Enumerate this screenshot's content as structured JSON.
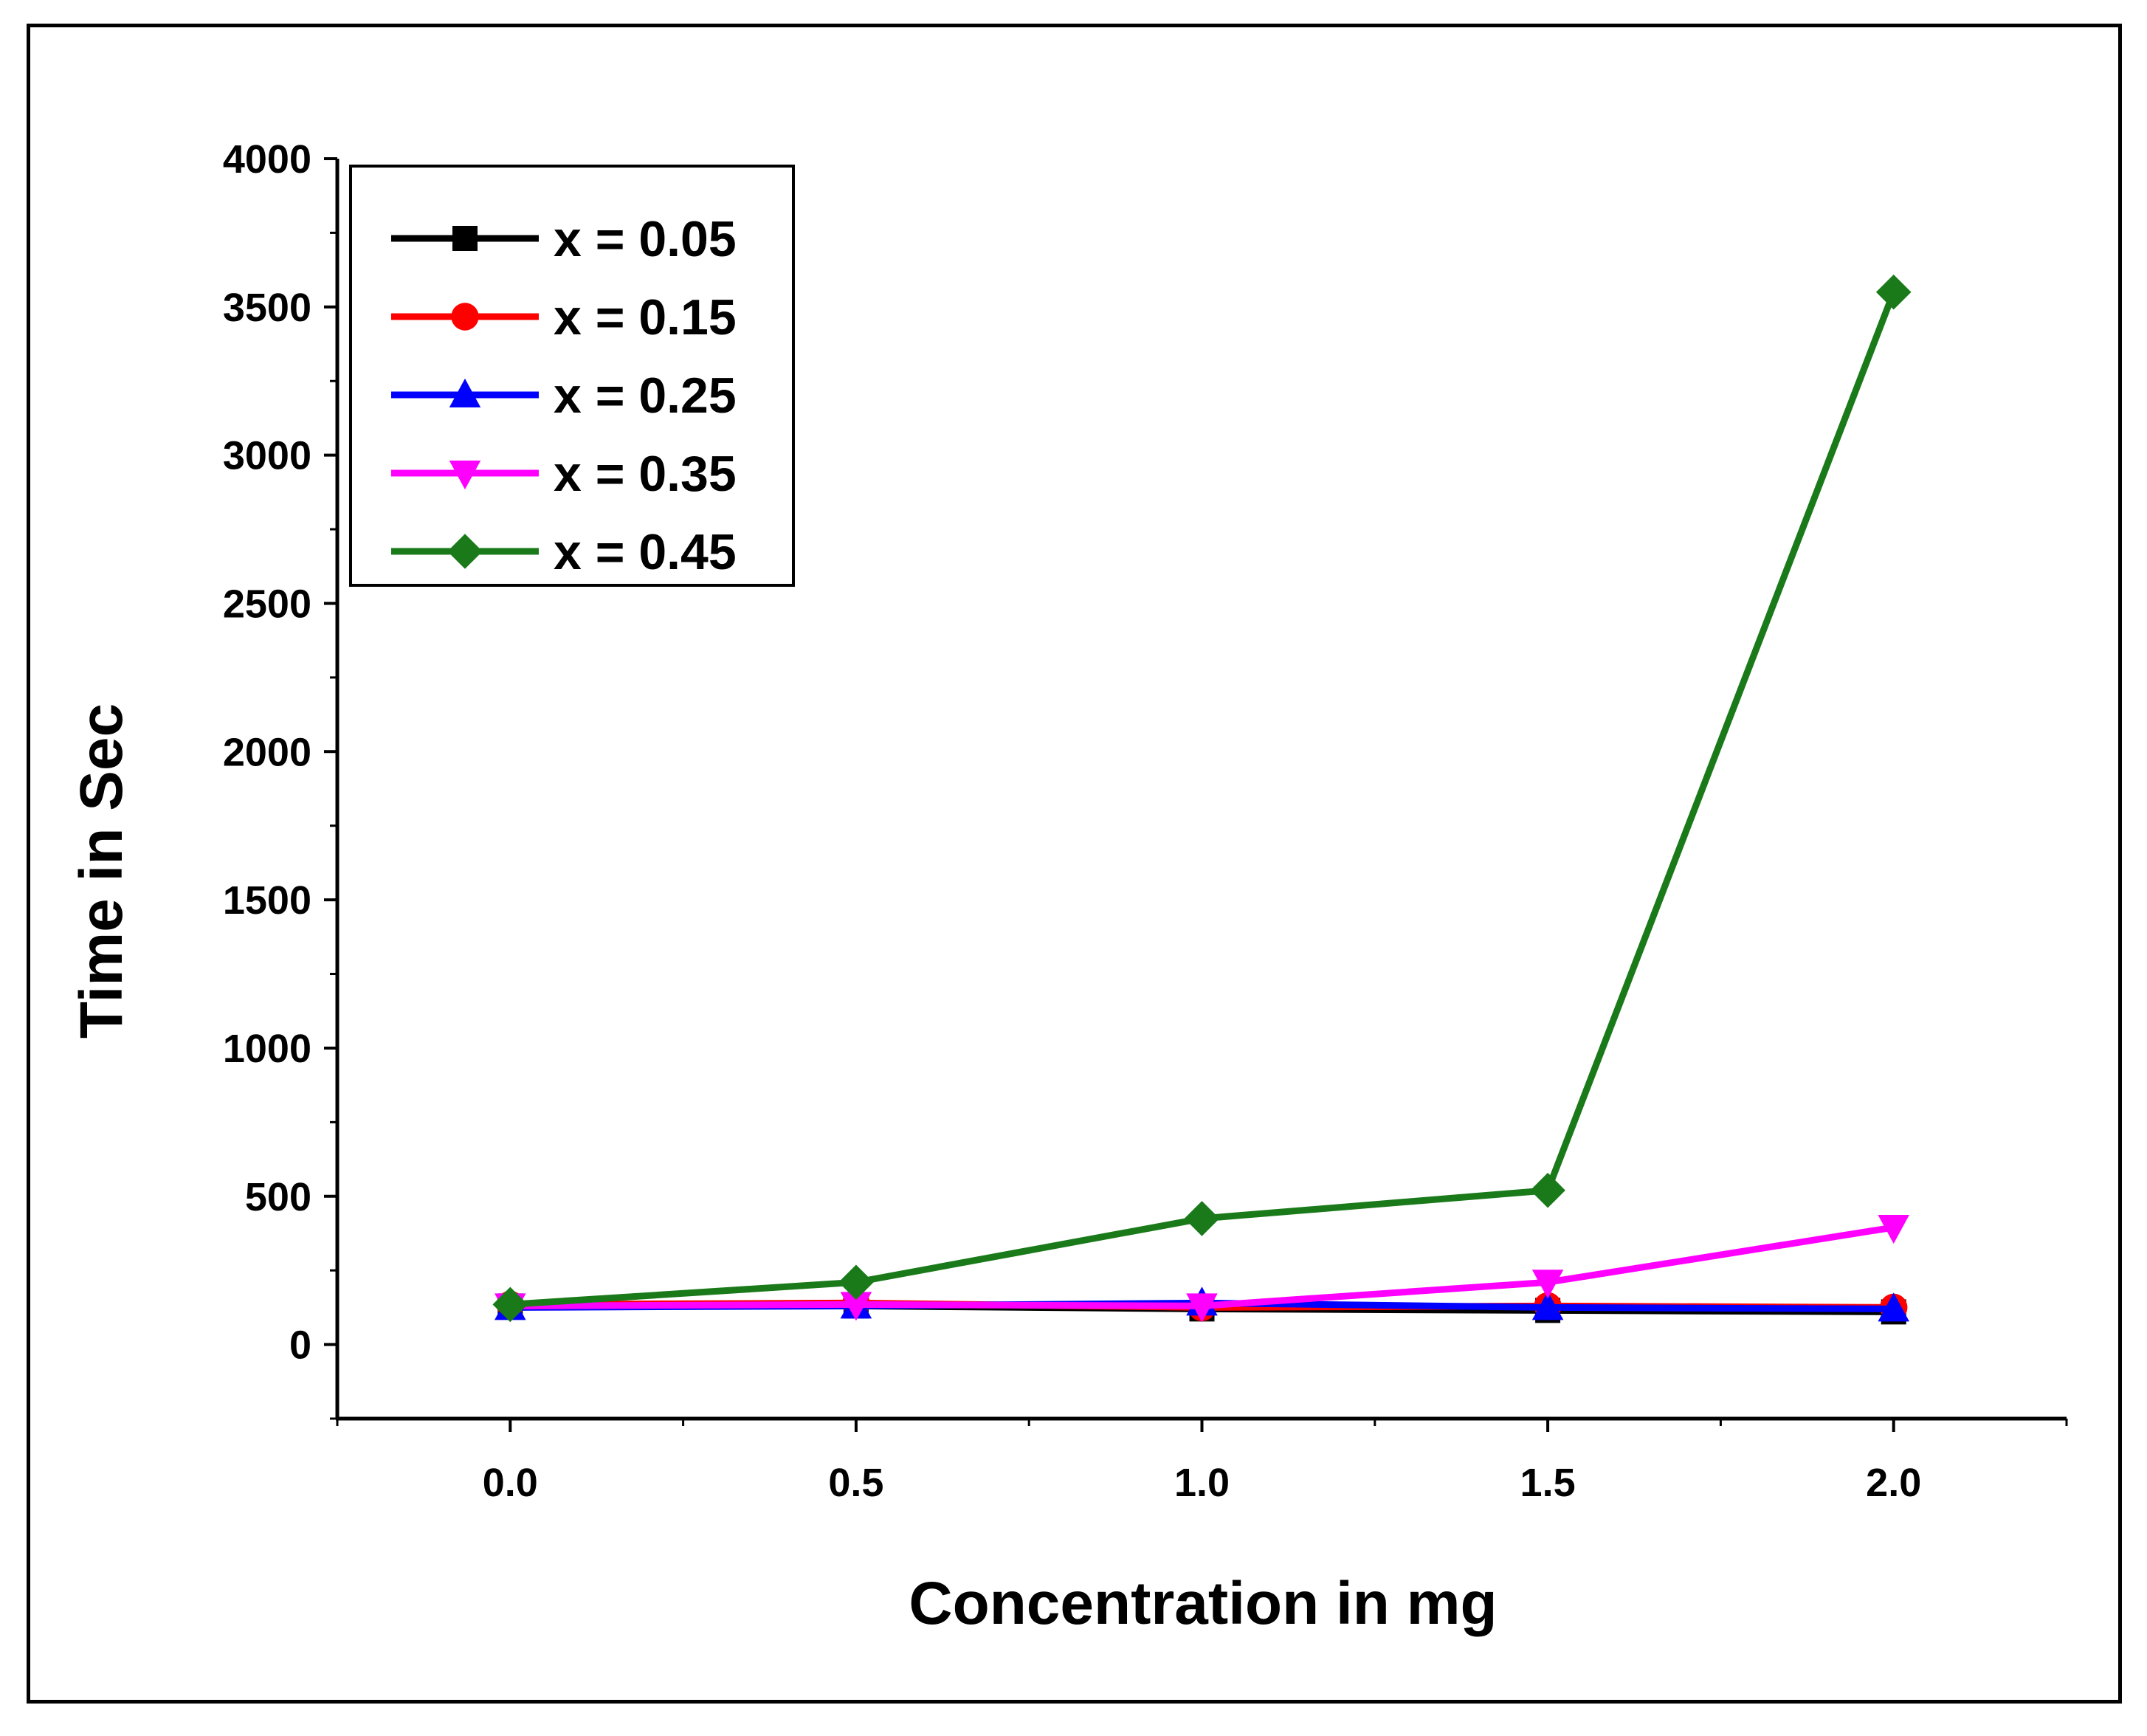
{
  "chart_data": {
    "type": "line",
    "title": "",
    "xlabel": "Concentration in mg",
    "ylabel": "Time in Sec",
    "x": [
      0.0,
      0.5,
      1.0,
      1.5,
      2.0
    ],
    "xlim": [
      -0.25,
      2.25
    ],
    "ylim": [
      -250,
      4000
    ],
    "xticks": [
      0.0,
      0.5,
      1.0,
      1.5,
      2.0
    ],
    "xtick_labels": [
      "0.0",
      "0.5",
      "1.0",
      "1.5",
      "2.0"
    ],
    "yticks": [
      0,
      500,
      1000,
      1500,
      2000,
      2500,
      3000,
      3500,
      4000
    ],
    "ytick_labels": [
      "0",
      "500",
      "1000",
      "1500",
      "2000",
      "2500",
      "3000",
      "3500",
      "4000"
    ],
    "grid": false,
    "legend_position": "top-left",
    "series": [
      {
        "name": "x = 0.05",
        "color": "#000000",
        "marker": "square",
        "values": [
          130,
          130,
          120,
          115,
          110
        ]
      },
      {
        "name": "x = 0.15",
        "color": "#ff0000",
        "marker": "circle",
        "values": [
          135,
          140,
          125,
          130,
          125
        ]
      },
      {
        "name": "x = 0.25",
        "color": "#0000ff",
        "marker": "triangle-up",
        "values": [
          125,
          130,
          140,
          125,
          120
        ]
      },
      {
        "name": "x = 0.35",
        "color": "#ff00ff",
        "marker": "triangle-down",
        "values": [
          130,
          135,
          130,
          210,
          395
        ]
      },
      {
        "name": "x = 0.45",
        "color": "#1a7a1a",
        "marker": "diamond",
        "values": [
          135,
          210,
          425,
          520,
          3550
        ]
      }
    ]
  }
}
